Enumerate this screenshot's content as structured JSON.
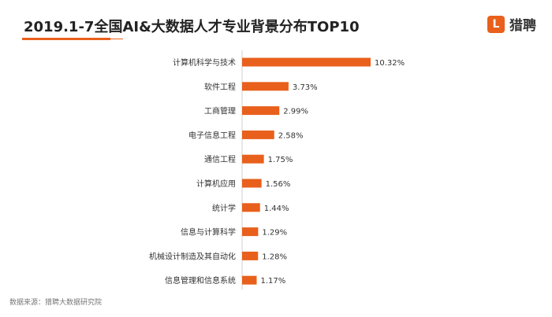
{
  "header": {
    "title": "2019.1-7全国AI&大数据人才专业背景分布TOP10",
    "brand_name": "猎聘",
    "brand_icon": "liepin-logo-icon"
  },
  "footer": {
    "source": "数据来源：猎聘大数据研究院"
  },
  "colors": {
    "accent": "#e8601c",
    "bar": "#e8601c",
    "text": "#333333"
  },
  "chart_data": {
    "type": "bar",
    "orientation": "horizontal",
    "categories": [
      "计算机科学与技术",
      "软件工程",
      "工商管理",
      "电子信息工程",
      "通信工程",
      "计算机应用",
      "统计学",
      "信息与计算科学",
      "机械设计制造及其自动化",
      "信息管理和信息系统"
    ],
    "values": [
      10.32,
      3.73,
      2.99,
      2.58,
      1.75,
      1.56,
      1.44,
      1.29,
      1.28,
      1.17
    ],
    "data_labels": [
      "10.32%",
      "3.73%",
      "2.99%",
      "2.58%",
      "1.75%",
      "1.56%",
      "1.44%",
      "1.29%",
      "1.28%",
      "1.17%"
    ],
    "title": "",
    "xlabel": "",
    "ylabel": "",
    "grid": false,
    "legend": "none"
  }
}
